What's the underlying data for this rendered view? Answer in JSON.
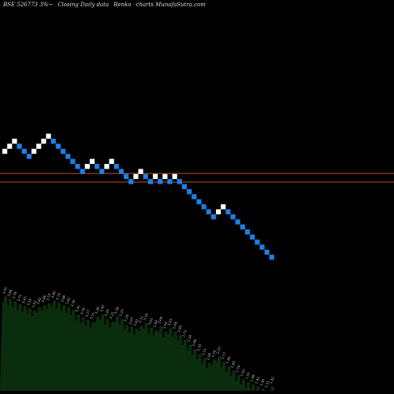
{
  "header": {
    "symbol": "BSE 526773 3%~",
    "desc": "Closing Daily data",
    "type": "Renko",
    "brand": "charts MunafaSutra.com"
  },
  "colors": {
    "background": "#000000",
    "up_brick": "#ffffff",
    "down_brick": "#1e7fe6",
    "level_lines": "#b5562a",
    "area_fill": "#0a2e0d",
    "area_dark": "#000000",
    "label_text": "#d8d8d8"
  },
  "chart_data": {
    "type": "renko",
    "title": "",
    "bricks": [
      {
        "level": 13,
        "dir": "up"
      },
      {
        "level": 14,
        "dir": "up"
      },
      {
        "level": 15,
        "dir": "up"
      },
      {
        "level": 14,
        "dir": "down"
      },
      {
        "level": 13,
        "dir": "down"
      },
      {
        "level": 12,
        "dir": "down"
      },
      {
        "level": 13,
        "dir": "up"
      },
      {
        "level": 14,
        "dir": "up"
      },
      {
        "level": 15,
        "dir": "up"
      },
      {
        "level": 16,
        "dir": "up"
      },
      {
        "level": 15,
        "dir": "down"
      },
      {
        "level": 14,
        "dir": "down"
      },
      {
        "level": 13,
        "dir": "down"
      },
      {
        "level": 12,
        "dir": "down"
      },
      {
        "level": 11,
        "dir": "down"
      },
      {
        "level": 10,
        "dir": "down"
      },
      {
        "level": 9,
        "dir": "down"
      },
      {
        "level": 10,
        "dir": "up"
      },
      {
        "level": 11,
        "dir": "up"
      },
      {
        "level": 10,
        "dir": "down"
      },
      {
        "level": 9,
        "dir": "down"
      },
      {
        "level": 10,
        "dir": "up"
      },
      {
        "level": 11,
        "dir": "up"
      },
      {
        "level": 10,
        "dir": "down"
      },
      {
        "level": 9,
        "dir": "down"
      },
      {
        "level": 8,
        "dir": "down"
      },
      {
        "level": 7,
        "dir": "down"
      },
      {
        "level": 8,
        "dir": "up"
      },
      {
        "level": 9,
        "dir": "up"
      },
      {
        "level": 8,
        "dir": "down"
      },
      {
        "level": 7,
        "dir": "down"
      },
      {
        "level": 8,
        "dir": "up"
      },
      {
        "level": 7,
        "dir": "down"
      },
      {
        "level": 8,
        "dir": "up"
      },
      {
        "level": 7,
        "dir": "down"
      },
      {
        "level": 8,
        "dir": "up"
      },
      {
        "level": 7,
        "dir": "down"
      },
      {
        "level": 6,
        "dir": "down"
      },
      {
        "level": 5,
        "dir": "down"
      },
      {
        "level": 4,
        "dir": "down"
      },
      {
        "level": 3,
        "dir": "down"
      },
      {
        "level": 2,
        "dir": "down"
      },
      {
        "level": 1,
        "dir": "down"
      },
      {
        "level": 0,
        "dir": "down"
      },
      {
        "level": 1,
        "dir": "up"
      },
      {
        "level": 2,
        "dir": "up"
      },
      {
        "level": 1,
        "dir": "down"
      },
      {
        "level": 0,
        "dir": "down"
      },
      {
        "level": -1,
        "dir": "down"
      },
      {
        "level": -2,
        "dir": "down"
      },
      {
        "level": -3,
        "dir": "down"
      },
      {
        "level": -4,
        "dir": "down"
      },
      {
        "level": -5,
        "dir": "down"
      },
      {
        "level": -6,
        "dir": "down"
      },
      {
        "level": -7,
        "dir": "down"
      },
      {
        "level": -8,
        "dir": "down"
      }
    ],
    "reference_levels": [
      8.1,
      6.4
    ],
    "y_range": [
      -10,
      30
    ],
    "bottom_labels": [
      "3.91",
      "3.84",
      "3.78",
      "3.71",
      "3.65",
      "3.59",
      "3.53",
      "3.62",
      "3.68",
      "3.73",
      "3.80",
      "3.74",
      "3.68",
      "3.62",
      "3.56",
      "3.41",
      "3.34",
      "3.27",
      "3.21",
      "3.36",
      "3.42",
      "3.29",
      "3.22",
      "3.36",
      "3.29",
      "3.14",
      "3.07",
      "3.02",
      "3.11",
      "3.18",
      "3.05",
      "2.99",
      "3.09",
      "2.95",
      "3.03",
      "2.94",
      "2.85",
      "2.72",
      "2.58",
      "2.46",
      "2.33",
      "2.21",
      "2.08",
      "2.16",
      "2.25",
      "2.11",
      "1.98",
      "1.86",
      "1.74",
      "1.63",
      "1.55",
      "1.48",
      "1.42",
      "1.36",
      "1.31",
      "1.42"
    ]
  }
}
